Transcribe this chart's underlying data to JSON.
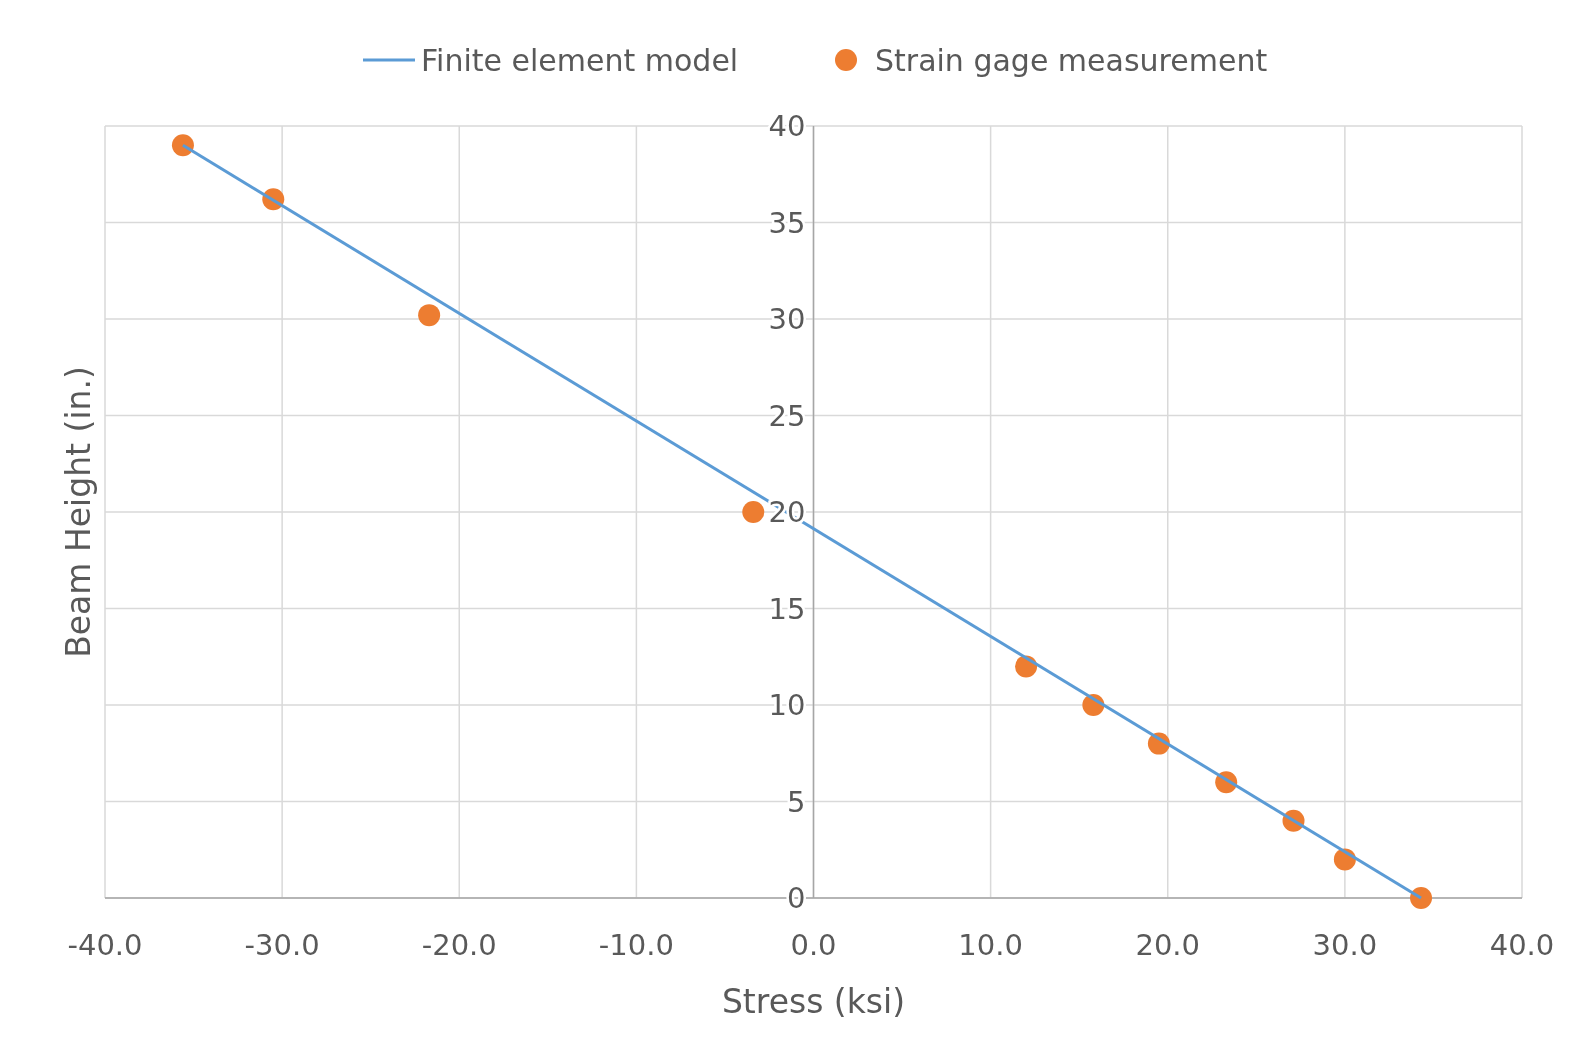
{
  "chart_data": {
    "type": "scatter",
    "xlabel": "Stress (ksi)",
    "ylabel": "Beam Height (in.)",
    "xlim": [
      -40,
      40
    ],
    "xticks": [
      {
        "value": -40,
        "label": "-40.0"
      },
      {
        "value": -30,
        "label": "-30.0"
      },
      {
        "value": -20,
        "label": "-20.0"
      },
      {
        "value": -10,
        "label": "-10.0"
      },
      {
        "value": 0,
        "label": "0.0"
      },
      {
        "value": 10,
        "label": "10.0"
      },
      {
        "value": 20,
        "label": "20.0"
      },
      {
        "value": 30,
        "label": "30.0"
      },
      {
        "value": 40,
        "label": "40.0"
      }
    ],
    "ylim": [
      0,
      40
    ],
    "yticks": [
      0,
      5,
      10,
      15,
      20,
      25,
      30,
      35,
      40
    ],
    "grid": true,
    "legend": "top",
    "series": [
      {
        "name": "Finite element model",
        "type": "line",
        "color": "#5b9bd5",
        "marker": "none",
        "x": [
          -35.6,
          34.3
        ],
        "values": [
          39,
          0
        ]
      },
      {
        "name": "Strain gage measurement",
        "color": "#ed7d31",
        "marker": "circle",
        "x": [
          -35.6,
          -30.5,
          -21.7,
          -3.4,
          12.0,
          15.8,
          19.5,
          23.3,
          27.1,
          30.0,
          34.3
        ],
        "values": [
          39.0,
          36.2,
          30.2,
          20.0,
          12,
          10,
          8,
          6,
          4,
          2,
          0
        ]
      }
    ]
  }
}
